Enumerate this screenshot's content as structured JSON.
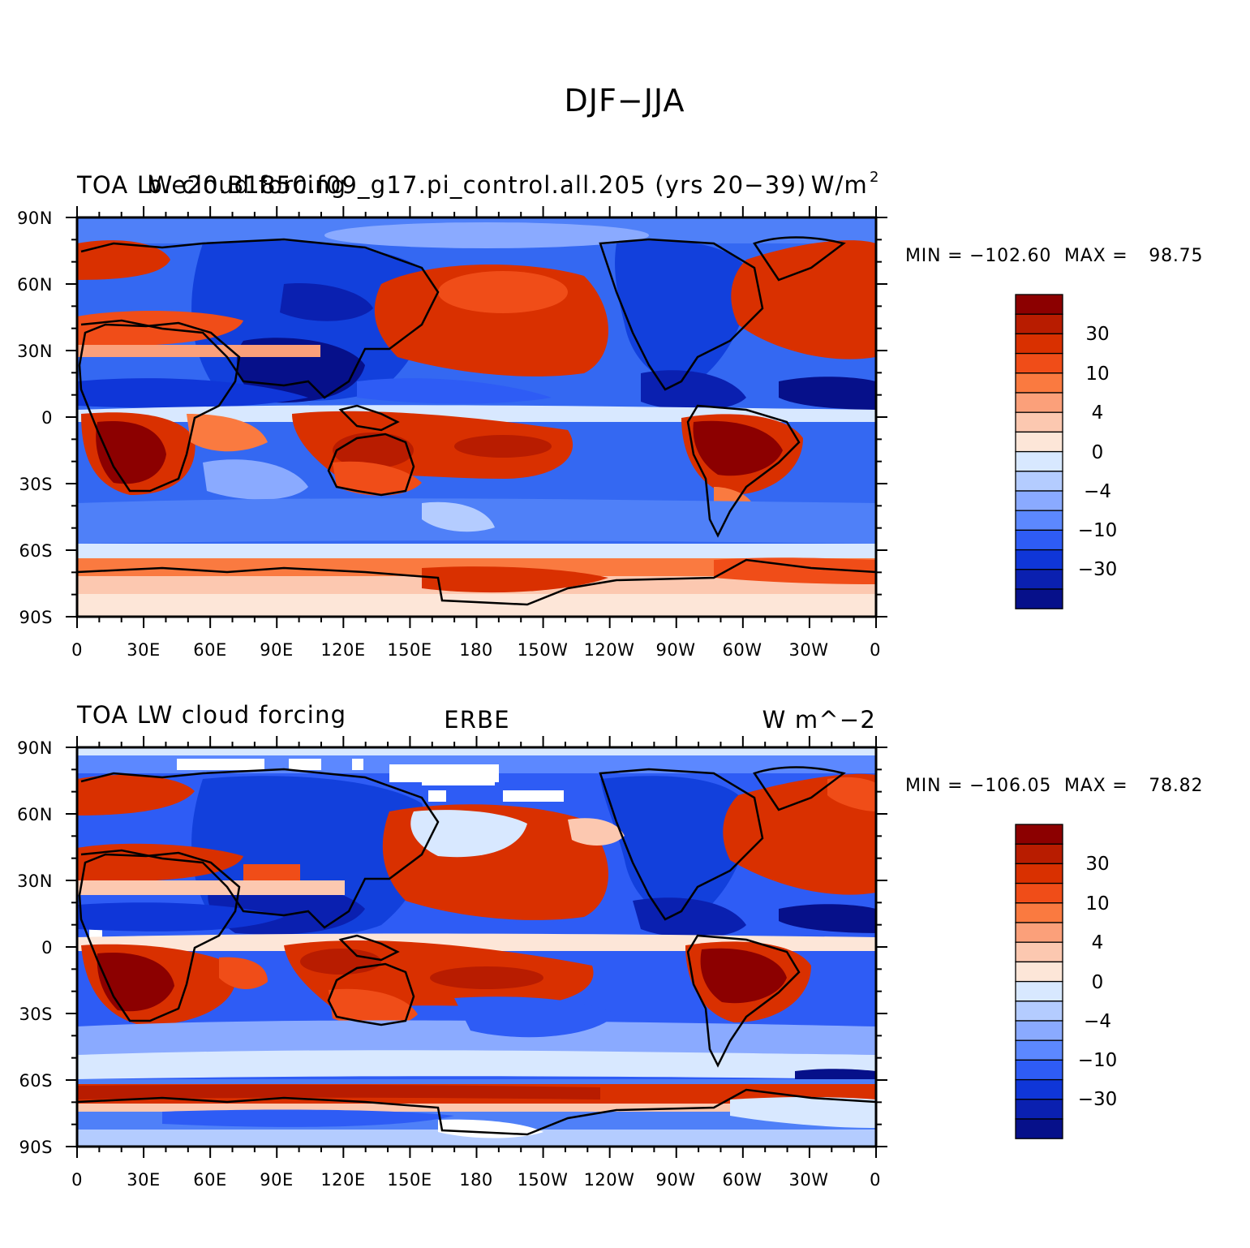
{
  "figure_title": "DJF−JJA",
  "colors": {
    "levels": [
      "#8c0000",
      "#b81c00",
      "#d93000",
      "#f04d18",
      "#fa7a40",
      "#fba07a",
      "#fcc8b0",
      "#fde6d8",
      "#d8e8ff",
      "#b4ccff",
      "#8aaaff",
      "#5c88ff",
      "#2e5cf5",
      "#0f36d8",
      "#0a20b0",
      "#06108a"
    ]
  },
  "axes": {
    "x_ticks": [
      "0",
      "30E",
      "60E",
      "90E",
      "120E",
      "150E",
      "180",
      "150W",
      "120W",
      "90W",
      "60W",
      "30W",
      "0"
    ],
    "y_ticks": [
      "90N",
      "60N",
      "30N",
      "0",
      "30S",
      "60S",
      "90S"
    ]
  },
  "panels": [
    {
      "title_left": "TOA LW cloud forcing",
      "title_center": "b.e20.B1850.f09_g17.pi_control.all.205 (yrs 20−39)",
      "title_right": "W/m",
      "title_right_sup": "2",
      "min_label": "MIN =",
      "min_value": "−102.60",
      "max_label": "MAX =",
      "max_value": "98.75",
      "colorbar_labels": [
        "30",
        "10",
        "4",
        "0",
        "−4",
        "−10",
        "−30"
      ]
    },
    {
      "title_left": "TOA LW cloud forcing",
      "title_center": "ERBE",
      "title_right": "W m^−2",
      "title_right_sup": "",
      "min_label": "MIN =",
      "min_value": "−106.05",
      "max_label": "MAX =",
      "max_value": "78.82",
      "colorbar_labels": [
        "30",
        "10",
        "4",
        "0",
        "−4",
        "−10",
        "−30"
      ]
    }
  ]
}
